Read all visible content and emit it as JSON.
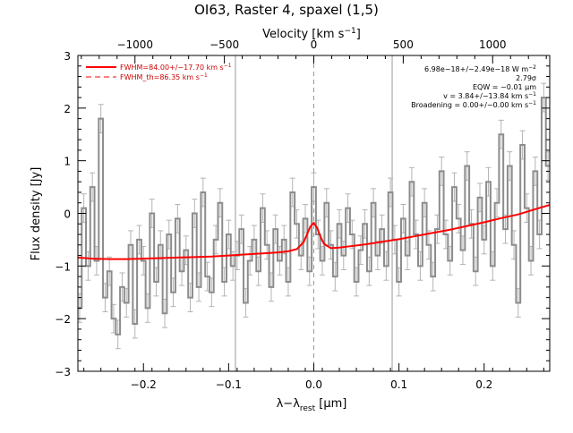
{
  "chart_data": {
    "type": "line",
    "title": "OI63, Raster 4, spaxel (1,5)",
    "xlabel": "λ−λ",
    "xlabel_sub": "rest",
    "xlabel_unit": " [μm]",
    "ylabel": "Flux density [Jy]",
    "top_axis_label": "Velocity [km s",
    "top_axis_label_sup": "−1",
    "top_axis_label_end": "]",
    "xlim": [
      -0.277,
      0.277
    ],
    "ylim": [
      -3,
      3
    ],
    "velocity_per_micron": 4762,
    "x_ticks": [
      -0.2,
      -0.1,
      0.0,
      0.1,
      0.2
    ],
    "x_tick_labels": [
      "−0.2",
      "−0.1",
      "0.0",
      "0.1",
      "0.2"
    ],
    "y_ticks": [
      -3,
      -2,
      -1,
      0,
      1,
      2,
      3
    ],
    "y_tick_labels": [
      "−3",
      "−2",
      "−1",
      "0",
      "1",
      "2",
      "3"
    ],
    "velocity_ticks": [
      -1000,
      -500,
      0,
      500,
      1000
    ],
    "velocity_tick_labels": [
      "−1000",
      "−500",
      "0",
      "500",
      "1000"
    ],
    "vertical_lines": [
      -0.092,
      0.0,
      0.092
    ],
    "legend": {
      "placement": "top-left",
      "entries": [
        {
          "label": "FWHM=84.00+/−17.70 km s",
          "sup": "−1",
          "style": "solid"
        },
        {
          "label": "FWHM_th=86.35 km s",
          "sup": "−1",
          "style": "dashed"
        }
      ]
    },
    "annotations": [
      {
        "text": "6.98e−18+/−2.49e−18 W m",
        "sup": "−2"
      },
      {
        "text": "2.79σ",
        "sup": ""
      },
      {
        "text": "EQW = −0.01 μm",
        "sup": ""
      },
      {
        "text": "v = 3.84+/−13.84 km s",
        "sup": "−1"
      },
      {
        "text": "Broadening = 0.00+/−0.00 km s",
        "sup": "−1"
      }
    ],
    "series": [
      {
        "name": "data",
        "x": [
          -0.275,
          -0.27,
          -0.265,
          -0.26,
          -0.255,
          -0.25,
          -0.245,
          -0.24,
          -0.235,
          -0.23,
          -0.225,
          -0.22,
          -0.215,
          -0.21,
          -0.205,
          -0.2,
          -0.195,
          -0.19,
          -0.185,
          -0.18,
          -0.175,
          -0.17,
          -0.165,
          -0.16,
          -0.155,
          -0.15,
          -0.145,
          -0.14,
          -0.135,
          -0.13,
          -0.125,
          -0.12,
          -0.115,
          -0.11,
          -0.105,
          -0.1,
          -0.095,
          -0.09,
          -0.085,
          -0.08,
          -0.075,
          -0.07,
          -0.065,
          -0.06,
          -0.055,
          -0.05,
          -0.045,
          -0.04,
          -0.035,
          -0.03,
          -0.025,
          -0.02,
          -0.015,
          -0.01,
          -0.005,
          0.0,
          0.005,
          0.01,
          0.015,
          0.02,
          0.025,
          0.03,
          0.035,
          0.04,
          0.045,
          0.05,
          0.055,
          0.06,
          0.065,
          0.07,
          0.075,
          0.08,
          0.085,
          0.09,
          0.095,
          0.1,
          0.105,
          0.11,
          0.115,
          0.12,
          0.125,
          0.13,
          0.135,
          0.14,
          0.145,
          0.15,
          0.155,
          0.16,
          0.165,
          0.17,
          0.175,
          0.18,
          0.185,
          0.19,
          0.195,
          0.2,
          0.205,
          0.21,
          0.215,
          0.22,
          0.225,
          0.23,
          0.235,
          0.24,
          0.245,
          0.25,
          0.255,
          0.26,
          0.265,
          0.27,
          0.275
        ],
        "y": [
          -1.8,
          0.1,
          -1.0,
          0.5,
          -0.9,
          1.8,
          -1.6,
          -1.1,
          -2.0,
          -2.3,
          -1.4,
          -1.7,
          -0.6,
          -2.1,
          -0.5,
          -0.9,
          -1.8,
          0.0,
          -1.3,
          -0.6,
          -1.9,
          -0.4,
          -1.5,
          -0.1,
          -1.1,
          -0.7,
          -1.6,
          0.0,
          -1.4,
          0.4,
          -1.2,
          -1.5,
          -0.5,
          0.2,
          -1.3,
          -0.4,
          -1.0,
          -0.8,
          -0.3,
          -1.7,
          -0.9,
          -0.5,
          -1.1,
          0.1,
          -0.6,
          -1.4,
          -0.3,
          -0.9,
          -0.5,
          -1.3,
          0.4,
          -0.2,
          -0.8,
          -0.1,
          -1.1,
          0.5,
          -0.4,
          -0.9,
          0.2,
          -0.6,
          -1.2,
          -0.2,
          -0.8,
          0.1,
          -0.4,
          -1.3,
          -0.7,
          -0.2,
          -1.1,
          0.2,
          -0.8,
          -0.3,
          -1.0,
          0.4,
          -0.5,
          -1.3,
          -0.1,
          -0.8,
          0.6,
          -0.4,
          -1.0,
          0.2,
          -0.6,
          -1.2,
          -0.3,
          0.8,
          -0.4,
          -0.9,
          0.5,
          -0.1,
          -0.7,
          0.9,
          -0.2,
          -1.1,
          0.3,
          -0.5,
          0.6,
          -1.0,
          0.2,
          1.5,
          -0.3,
          0.9,
          -0.6,
          -1.7,
          1.3,
          0.1,
          -0.9,
          0.8,
          -0.4,
          2.2,
          0.9
        ],
        "errors": [
          0.27,
          0.27,
          0.27,
          0.27,
          0.27,
          0.27,
          0.27,
          0.27,
          0.27,
          0.27,
          0.27,
          0.27,
          0.27,
          0.27,
          0.27,
          0.27,
          0.27,
          0.27,
          0.27,
          0.27,
          0.27,
          0.27,
          0.27,
          0.27,
          0.27,
          0.27,
          0.27,
          0.27,
          0.27,
          0.27,
          0.27,
          0.27,
          0.27,
          0.27,
          0.27,
          0.27,
          0.27,
          0.27,
          0.27,
          0.27,
          0.27,
          0.27,
          0.27,
          0.27,
          0.27,
          0.27,
          0.27,
          0.27,
          0.27,
          0.27,
          0.27,
          0.27,
          0.27,
          0.27,
          0.27,
          0.27,
          0.27,
          0.27,
          0.27,
          0.27,
          0.27,
          0.27,
          0.27,
          0.27,
          0.27,
          0.27,
          0.27,
          0.27,
          0.27,
          0.27,
          0.27,
          0.27,
          0.27,
          0.27,
          0.27,
          0.27,
          0.27,
          0.27,
          0.27,
          0.27,
          0.27,
          0.27,
          0.27,
          0.27,
          0.27,
          0.27,
          0.27,
          0.27,
          0.27,
          0.27,
          0.27,
          0.27,
          0.27,
          0.27,
          0.27,
          0.27,
          0.27,
          0.27,
          0.27,
          0.27,
          0.27,
          0.27,
          0.27,
          0.27,
          0.27,
          0.27,
          0.27,
          0.27,
          0.27,
          0.27,
          0.27
        ],
        "color": "#8c8c8c",
        "style": "histogram-step"
      },
      {
        "name": "fit",
        "x": [
          -0.277,
          -0.26,
          -0.24,
          -0.22,
          -0.2,
          -0.18,
          -0.16,
          -0.14,
          -0.12,
          -0.1,
          -0.08,
          -0.06,
          -0.04,
          -0.03,
          -0.02,
          -0.012,
          -0.008,
          -0.004,
          0.0,
          0.004,
          0.008,
          0.012,
          0.02,
          0.03,
          0.04,
          0.06,
          0.08,
          0.1,
          0.12,
          0.14,
          0.16,
          0.18,
          0.2,
          0.22,
          0.24,
          0.26,
          0.277
        ],
        "y": [
          -0.84,
          -0.86,
          -0.87,
          -0.87,
          -0.86,
          -0.85,
          -0.84,
          -0.83,
          -0.82,
          -0.8,
          -0.78,
          -0.76,
          -0.74,
          -0.72,
          -0.68,
          -0.55,
          -0.4,
          -0.25,
          -0.18,
          -0.28,
          -0.45,
          -0.58,
          -0.66,
          -0.65,
          -0.63,
          -0.59,
          -0.54,
          -0.49,
          -0.43,
          -0.37,
          -0.31,
          -0.24,
          -0.17,
          -0.09,
          -0.02,
          0.08,
          0.16
        ],
        "color": "#ff0000",
        "style": "solid"
      }
    ],
    "colors": {
      "data": "#8c8c8c",
      "fit": "#ff0000",
      "legend_text": "#cc0000",
      "axis": "#000000",
      "vline": "#999999"
    }
  }
}
